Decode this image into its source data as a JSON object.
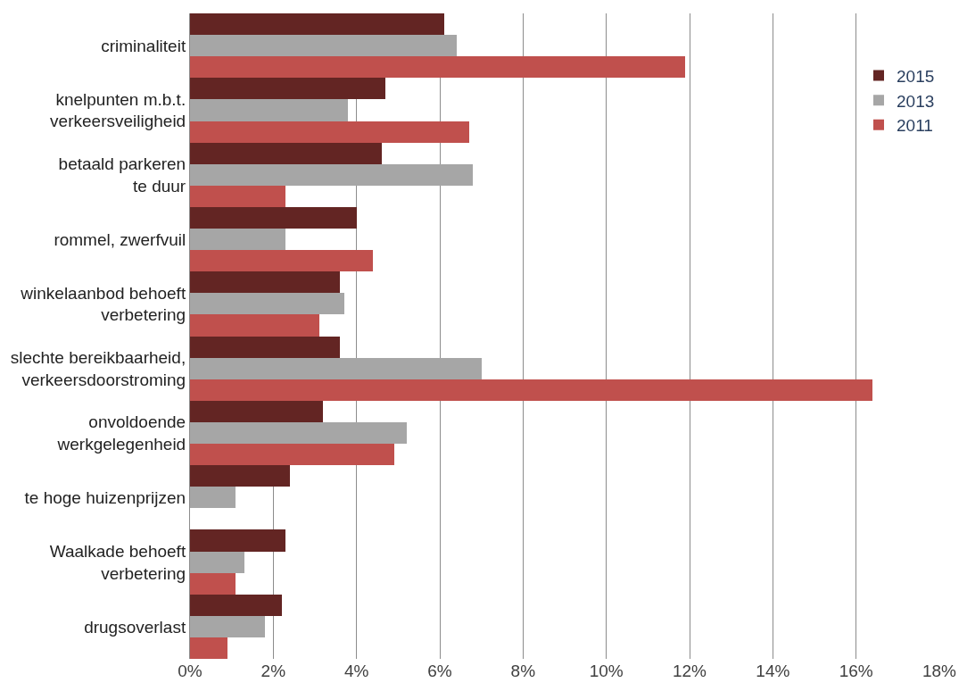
{
  "chart_data": {
    "type": "bar",
    "orientation": "horizontal",
    "categories": [
      "criminaliteit",
      "knelpunten m.b.t.\nverkeersveiligheid",
      "betaald parkeren\nte duur",
      "rommel, zwerfvuil",
      "winkelaanbod behoeft\nverbetering",
      "slechte bereikbaarheid,\nverkeersdoorstroming",
      "onvoldoende\nwerkgelegenheid",
      "te hoge huizenprijzen",
      "Waalkade behoeft\nverbetering",
      "drugsoverlast"
    ],
    "series": [
      {
        "name": "2015",
        "color": "#632523",
        "values": [
          6.1,
          4.7,
          4.6,
          4.0,
          3.6,
          3.6,
          3.2,
          2.4,
          2.3,
          2.2
        ]
      },
      {
        "name": "2013",
        "color": "#a6a6a6",
        "values": [
          6.4,
          3.8,
          6.8,
          2.3,
          3.7,
          7.0,
          5.2,
          1.1,
          1.3,
          1.8
        ]
      },
      {
        "name": "2011",
        "color": "#c0504d",
        "values": [
          11.9,
          6.7,
          2.3,
          4.4,
          3.1,
          16.4,
          4.9,
          null,
          1.1,
          0.9
        ]
      }
    ],
    "xlim": [
      0,
      18
    ],
    "xticks": [
      {
        "value": 0,
        "label": "0%"
      },
      {
        "value": 2,
        "label": "2%"
      },
      {
        "value": 4,
        "label": "4%"
      },
      {
        "value": 6,
        "label": "6%"
      },
      {
        "value": 8,
        "label": "8%"
      },
      {
        "value": 10,
        "label": "10%"
      },
      {
        "value": 12,
        "label": "12%"
      },
      {
        "value": 14,
        "label": "14%"
      },
      {
        "value": 16,
        "label": "16%"
      },
      {
        "value": 18,
        "label": "18%"
      }
    ],
    "grid": "x",
    "legend": "top right"
  }
}
